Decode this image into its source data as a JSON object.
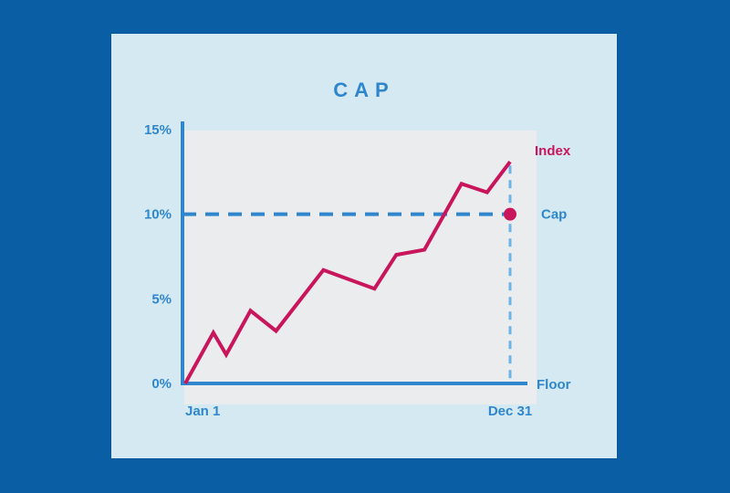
{
  "chart_data": {
    "type": "line",
    "title": "CAP",
    "x_start_label": "Jan 1",
    "x_end_label": "Dec 31",
    "yticks": [
      "0%",
      "5%",
      "10%",
      "15%"
    ],
    "ylim": [
      0,
      15
    ],
    "series": [
      {
        "name": "Index",
        "color": "#c8155b",
        "points": [
          [
            0,
            0
          ],
          [
            1.1,
            3
          ],
          [
            1.6,
            1.7
          ],
          [
            2.55,
            4.3
          ],
          [
            3.55,
            3.1
          ],
          [
            5.4,
            6.7
          ],
          [
            7.4,
            5.6
          ],
          [
            8.25,
            7.6
          ],
          [
            9.35,
            7.9
          ],
          [
            10.8,
            11.8
          ],
          [
            11.8,
            11.3
          ],
          [
            12.7,
            13.1
          ]
        ]
      }
    ],
    "cap": {
      "label": "Cap",
      "value": 10,
      "color": "#2f86cc",
      "marker_color": "#c8155b"
    },
    "floor": {
      "label": "Floor",
      "value": 0
    },
    "index_label": "Index",
    "x_range": [
      0,
      12.7
    ],
    "axis_color": "#2f86cc",
    "grid": false
  }
}
